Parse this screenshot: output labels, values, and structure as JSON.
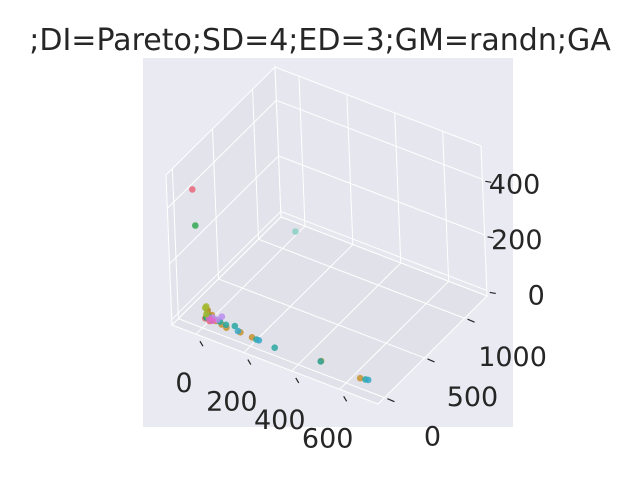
{
  "chart_data": {
    "type": "scatter",
    "projection": "3d",
    "title": ";DI=Pareto;SD=4;ED=3;GM=randn;GA",
    "xlabel": "",
    "ylabel": "",
    "zlabel": "",
    "grid": true,
    "legend": "none",
    "style": "seaborn-darkgrid",
    "background_color": "#eaeaf2",
    "axes": {
      "x": {
        "ticks": [
          0,
          200,
          400,
          600
        ],
        "tick_labels": [
          "0",
          "200",
          "400",
          "600"
        ],
        "range": [
          -100,
          760
        ]
      },
      "y": {
        "ticks": [
          0,
          500,
          1000
        ],
        "tick_labels": [
          "0",
          "500",
          "1000"
        ],
        "range": [
          -80,
          1280
        ]
      },
      "z": {
        "ticks": [
          0,
          200,
          400
        ],
        "tick_labels": [
          "0",
          "200",
          "400"
        ],
        "range": [
          -20,
          520
        ]
      }
    },
    "series": [
      {
        "color": "#e8667a",
        "points": [
          [
            -30,
            30,
            460
          ],
          [
            5,
            25,
            9
          ],
          [
            25,
            20,
            7
          ],
          [
            15,
            40,
            10
          ]
        ]
      },
      {
        "color": "#32a852",
        "points": [
          [
            -25,
            35,
            330
          ],
          [
            10,
            40,
            35
          ],
          [
            18,
            32,
            25
          ],
          [
            8,
            28,
            12
          ],
          [
            30,
            36,
            8
          ]
        ]
      },
      {
        "color": "#c8902e",
        "points": [
          [
            45,
            40,
            8
          ],
          [
            70,
            35,
            5
          ],
          [
            150,
            30,
            5
          ],
          [
            200,
            25,
            5
          ],
          [
            480,
            50,
            5
          ],
          [
            650,
            30,
            5
          ],
          [
            25,
            50,
            20
          ],
          [
            95,
            20,
            6
          ],
          [
            15,
            30,
            40
          ]
        ]
      },
      {
        "color": "#2aa7a0",
        "points": [
          [
            220,
            20,
            5
          ],
          [
            300,
            10,
            5
          ],
          [
            480,
            45,
            5
          ],
          [
            670,
            35,
            6
          ],
          [
            60,
            45,
            9
          ],
          [
            120,
            50,
            12
          ],
          [
            20,
            32,
            15
          ],
          [
            90,
            30,
            12
          ],
          [
            12,
            40,
            10
          ]
        ]
      },
      {
        "color": "#36a8c8",
        "points": [
          [
            140,
            30,
            6
          ],
          [
            230,
            22,
            5
          ],
          [
            680,
            40,
            6
          ]
        ]
      },
      {
        "color": "#b88df0",
        "points": [
          [
            60,
            70,
            20
          ],
          [
            30,
            45,
            14
          ],
          [
            50,
            38,
            15
          ]
        ]
      },
      {
        "color": "#e567c9",
        "points": [
          [
            20,
            30,
            12
          ],
          [
            35,
            28,
            9
          ]
        ]
      },
      {
        "color": "#a3b82e",
        "points": [
          [
            5,
            30,
            45
          ],
          [
            10,
            25,
            25
          ],
          [
            8,
            34,
            50
          ]
        ]
      },
      {
        "color": "#8ad0c4",
        "points": [
          [
            40,
            1050,
            40
          ]
        ]
      }
    ]
  }
}
